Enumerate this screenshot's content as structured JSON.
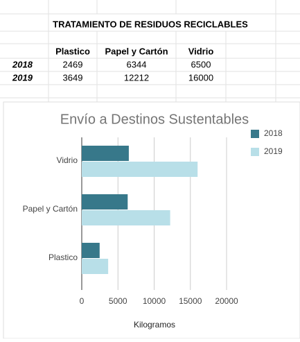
{
  "table": {
    "title": "TRATAMIENTO DE RESIDUOS RECICLABLES",
    "header": [
      "Plastico",
      "Papel y Cartón",
      "Vidrio"
    ],
    "rows": [
      [
        "2018",
        "2469",
        "6344",
        "6500"
      ],
      [
        "2019",
        "3649",
        "12212",
        "16000"
      ]
    ]
  },
  "chart_data": {
    "type": "bar",
    "orientation": "horizontal",
    "title": "Envío a Destinos Sustentables",
    "x_label": "Kilogramos",
    "categories": [
      "Plastico",
      "Papel y Cartón",
      "Vidrio"
    ],
    "series": [
      {
        "name": "2018",
        "color": "#37788a",
        "values": [
          2469,
          6344,
          6500
        ]
      },
      {
        "name": "2019",
        "color": "#b8dfe8",
        "values": [
          3649,
          12212,
          16000
        ]
      }
    ],
    "xlim": [
      0,
      20000
    ],
    "xticks": [
      0,
      5000,
      10000,
      15000,
      20000
    ],
    "grid": true,
    "legend": "right"
  }
}
